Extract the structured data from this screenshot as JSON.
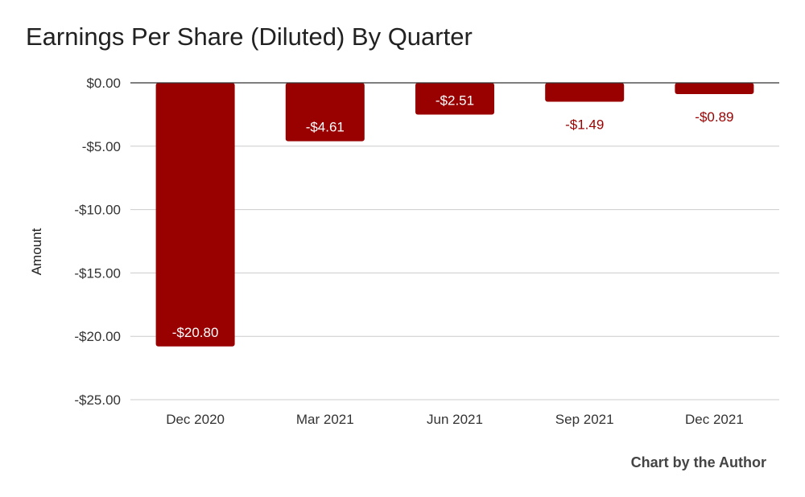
{
  "chart_data": {
    "type": "bar",
    "title": "Earnings Per Share (Diluted) By Quarter",
    "xlabel": "",
    "ylabel": "Amount",
    "categories": [
      "Dec 2020",
      "Mar 2021",
      "Jun 2021",
      "Sep 2021",
      "Dec 2021"
    ],
    "values": [
      -20.8,
      -4.61,
      -2.51,
      -1.49,
      -0.89
    ],
    "data_labels": [
      "-$20.80",
      "-$4.61",
      "-$2.51",
      "-$1.49",
      "-$0.89"
    ],
    "ylim": [
      -25,
      0
    ],
    "yticks": [
      0,
      -5,
      -10,
      -15,
      -20,
      -25
    ],
    "ytick_labels": [
      "$0.00",
      "-$5.00",
      "-$10.00",
      "-$15.00",
      "-$20.00",
      "-$25.00"
    ],
    "grid": true,
    "legend": "none",
    "bar_color": "#990000",
    "label_inside_color": "#ffffff",
    "label_outside_color": "#990000"
  },
  "credit": "Chart by the Author"
}
